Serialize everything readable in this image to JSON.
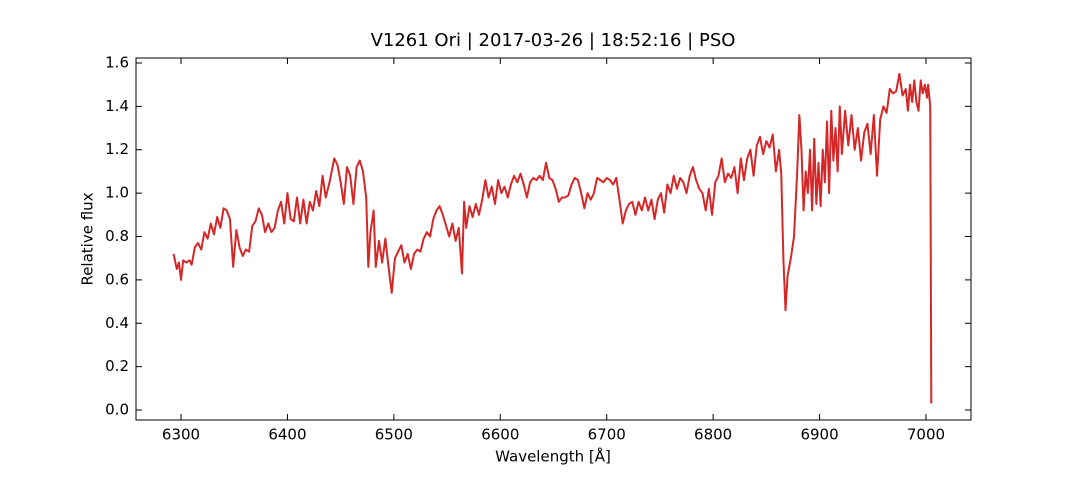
{
  "chart_data": {
    "type": "line",
    "title": "V1261 Ori | 2017-03-26 | 18:52:16 | PSO",
    "x_label": "Wavelength [Å]",
    "y_label": "Relative flux",
    "xlim": [
      6257.7,
      7042.3
    ],
    "ylim": [
      -0.046,
      1.623
    ],
    "xticks": [
      6300,
      6400,
      6500,
      6600,
      6700,
      6800,
      6900,
      7000
    ],
    "yticks": [
      {
        "value": 0,
        "label": "0.0"
      },
      0.2,
      0.4,
      0.6,
      0.8,
      {
        "value": 1,
        "label": "1.0"
      },
      1.2,
      1.4,
      1.6
    ],
    "x": [
      6293,
      6296,
      6298,
      6300,
      6302,
      6305,
      6308,
      6310,
      6313,
      6316,
      6319,
      6322,
      6325,
      6328,
      6331,
      6334,
      6337,
      6340,
      6343,
      6346,
      6349,
      6352,
      6355,
      6358,
      6361,
      6364,
      6367,
      6370,
      6373,
      6376,
      6379,
      6382,
      6385,
      6388,
      6391,
      6394,
      6397,
      6400,
      6403,
      6406,
      6409,
      6412,
      6415,
      6418,
      6421,
      6424,
      6427,
      6430,
      6433,
      6436,
      6440,
      6444,
      6447,
      6450,
      6453,
      6456,
      6459,
      6462,
      6465,
      6468,
      6471,
      6474,
      6476,
      6478,
      6481,
      6483,
      6486,
      6489,
      6492,
      6495,
      6498,
      6501,
      6504,
      6507,
      6510,
      6513,
      6516,
      6519,
      6522,
      6525,
      6528,
      6531,
      6534,
      6537,
      6540,
      6543,
      6546,
      6549,
      6552,
      6555,
      6558,
      6561,
      6564,
      6566,
      6568,
      6571,
      6574,
      6577,
      6580,
      6583,
      6586,
      6589,
      6592,
      6595,
      6598,
      6601,
      6604,
      6607,
      6610,
      6613,
      6616,
      6619,
      6622,
      6625,
      6628,
      6631,
      6634,
      6637,
      6640,
      6643,
      6646,
      6649,
      6652,
      6655,
      6658,
      6661,
      6664,
      6667,
      6670,
      6673,
      6676,
      6679,
      6682,
      6685,
      6688,
      6691,
      6694,
      6697,
      6700,
      6703,
      6706,
      6709,
      6712,
      6715,
      6718,
      6721,
      6724,
      6727,
      6730,
      6733,
      6736,
      6739,
      6742,
      6745,
      6748,
      6751,
      6754,
      6757,
      6760,
      6763,
      6766,
      6769,
      6772,
      6775,
      6778,
      6781,
      6784,
      6787,
      6790,
      6793,
      6796,
      6799,
      6802,
      6805,
      6808,
      6811,
      6814,
      6817,
      6820,
      6823,
      6826,
      6829,
      6832,
      6835,
      6838,
      6841,
      6844,
      6847,
      6850,
      6853,
      6856,
      6859,
      6862,
      6864,
      6866,
      6868,
      6870,
      6873,
      6876,
      6879,
      6881,
      6883,
      6885,
      6887,
      6889,
      6891,
      6893,
      6895,
      6897,
      6899,
      6901,
      6903,
      6905,
      6907,
      6909,
      6911,
      6913,
      6915,
      6917,
      6919,
      6921,
      6924,
      6927,
      6930,
      6933,
      6936,
      6939,
      6942,
      6945,
      6948,
      6951,
      6954,
      6957,
      6960,
      6963,
      6966,
      6969,
      6972,
      6975,
      6978,
      6981,
      6983,
      6985,
      6987,
      6989,
      6991,
      6993,
      6995,
      6997,
      6999,
      7001,
      7002,
      7003,
      7004,
      7005
    ],
    "series": [
      {
        "name": "V1261 Ori",
        "color": "#d62728",
        "values": [
          0.72,
          0.65,
          0.68,
          0.6,
          0.69,
          0.68,
          0.69,
          0.67,
          0.75,
          0.77,
          0.74,
          0.82,
          0.79,
          0.86,
          0.81,
          0.89,
          0.84,
          0.93,
          0.92,
          0.88,
          0.66,
          0.83,
          0.75,
          0.71,
          0.74,
          0.73,
          0.85,
          0.87,
          0.93,
          0.9,
          0.82,
          0.86,
          0.82,
          0.84,
          0.92,
          0.96,
          0.86,
          1.0,
          0.88,
          0.87,
          0.98,
          0.86,
          0.97,
          0.86,
          0.96,
          0.92,
          1.01,
          0.94,
          1.08,
          0.98,
          1.06,
          1.16,
          1.13,
          1.05,
          0.95,
          1.12,
          1.08,
          0.95,
          1.12,
          1.15,
          1.1,
          0.98,
          0.66,
          0.82,
          0.92,
          0.66,
          0.78,
          0.68,
          0.79,
          0.66,
          0.54,
          0.7,
          0.73,
          0.76,
          0.68,
          0.72,
          0.65,
          0.72,
          0.74,
          0.73,
          0.79,
          0.82,
          0.8,
          0.88,
          0.92,
          0.94,
          0.9,
          0.85,
          0.8,
          0.86,
          0.78,
          0.84,
          0.63,
          0.96,
          0.84,
          0.94,
          0.89,
          0.95,
          0.9,
          0.97,
          1.06,
          0.98,
          1.03,
          0.95,
          1.06,
          1.0,
          1.03,
          0.98,
          1.04,
          1.08,
          1.05,
          1.09,
          1.04,
          0.98,
          1.05,
          1.07,
          1.06,
          1.08,
          1.06,
          1.14,
          1.07,
          1.06,
          1.02,
          0.96,
          0.98,
          0.98,
          0.99,
          1.04,
          1.07,
          1.06,
          1.0,
          0.93,
          1.0,
          0.97,
          1.0,
          1.07,
          1.06,
          1.05,
          1.07,
          1.06,
          1.04,
          1.07,
          0.97,
          0.86,
          0.92,
          0.95,
          0.96,
          0.9,
          0.96,
          0.92,
          0.98,
          0.92,
          0.97,
          0.88,
          0.97,
          1.0,
          0.91,
          1.04,
          1.0,
          1.08,
          1.02,
          1.07,
          1.05,
          1.0,
          1.08,
          1.12,
          1.06,
          1.02,
          1.0,
          0.92,
          1.02,
          0.9,
          1.05,
          1.08,
          1.16,
          1.05,
          1.09,
          1.07,
          1.12,
          1.0,
          1.16,
          1.06,
          1.16,
          1.2,
          1.08,
          1.22,
          1.26,
          1.18,
          1.24,
          1.21,
          1.27,
          1.1,
          1.2,
          1.09,
          0.7,
          0.46,
          0.62,
          0.7,
          0.8,
          1.1,
          1.36,
          1.2,
          0.92,
          1.1,
          1.0,
          1.2,
          0.92,
          1.25,
          0.95,
          1.14,
          0.94,
          1.2,
          1.05,
          1.33,
          1.0,
          1.38,
          1.15,
          1.3,
          1.1,
          1.4,
          1.18,
          1.38,
          1.22,
          1.36,
          1.2,
          1.3,
          1.15,
          1.28,
          1.32,
          1.18,
          1.36,
          1.08,
          1.34,
          1.4,
          1.37,
          1.48,
          1.46,
          1.47,
          1.55,
          1.45,
          1.48,
          1.38,
          1.5,
          1.42,
          1.52,
          1.42,
          1.38,
          1.52,
          1.46,
          1.5,
          1.44,
          1.5,
          1.45,
          1.4,
          0.03
        ]
      }
    ]
  }
}
